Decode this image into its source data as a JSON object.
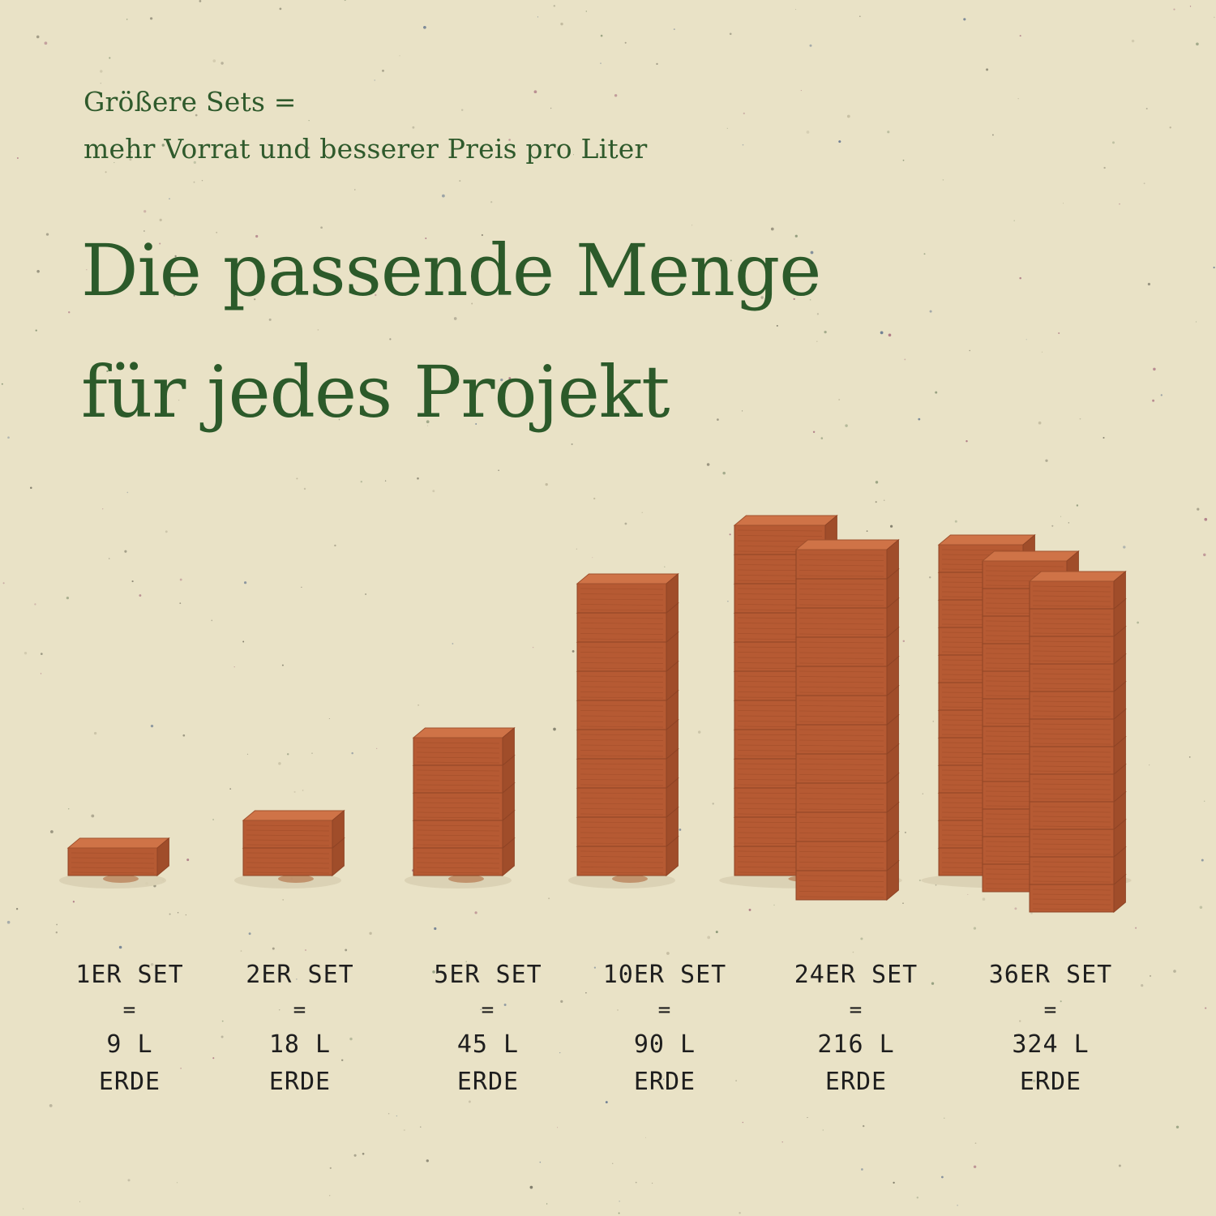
{
  "header": {
    "subline_1": "Größere Sets =",
    "subline_2": "mehr Vorrat und besserer Preis pro Liter",
    "title_line_1": "Die passende Menge",
    "title_line_2": "für jedes Projekt"
  },
  "colors": {
    "background": "#e9e2c6",
    "text_green": "#2c5a2a",
    "brick": "#c5643a",
    "label_text": "#1e1e1e"
  },
  "sets": [
    {
      "name": "1ER SET",
      "equals": "=",
      "volume": "9 L",
      "unit": "ERDE",
      "bricks": 1
    },
    {
      "name": "2ER SET",
      "equals": "=",
      "volume": "18 L",
      "unit": "ERDE",
      "bricks": 2
    },
    {
      "name": "5ER SET",
      "equals": "=",
      "volume": "45 L",
      "unit": "ERDE",
      "bricks": 5
    },
    {
      "name": "10ER SET",
      "equals": "=",
      "volume": "90 L",
      "unit": "ERDE",
      "bricks": 10
    },
    {
      "name": "24ER SET",
      "equals": "=",
      "volume": "216 L",
      "unit": "ERDE",
      "bricks": 24
    },
    {
      "name": "36ER SET",
      "equals": "=",
      "volume": "324 L",
      "unit": "ERDE",
      "bricks": 36
    }
  ]
}
